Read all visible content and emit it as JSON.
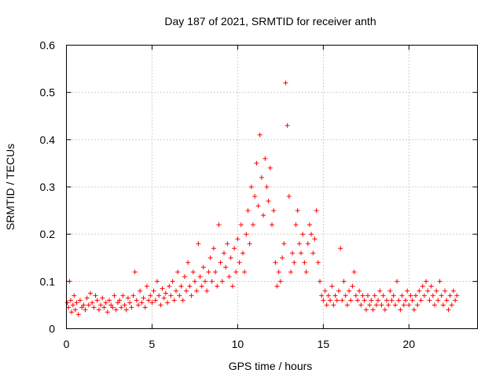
{
  "chart_data": {
    "type": "scatter",
    "title": "Day 187 of 2021, SRMTID for receiver anth",
    "xlabel": "GPS time / hours",
    "ylabel": "SRMTID / TECUs",
    "xlim": [
      0,
      24
    ],
    "ylim": [
      0,
      0.6
    ],
    "xticks": [
      0,
      5,
      10,
      15,
      20
    ],
    "xtick_labels": [
      "0",
      "5",
      "10",
      "15",
      "20"
    ],
    "yticks": [
      0,
      0.1,
      0.2,
      0.3,
      0.4,
      0.5,
      0.6
    ],
    "ytick_labels": [
      "0",
      "0.1",
      "0.2",
      "0.3",
      "0.4",
      "0.5",
      "0.6"
    ],
    "grid": true,
    "marker": "plus",
    "color": "#ff0000",
    "series": [
      {
        "name": "SRMTID",
        "points": [
          [
            0.05,
            0.055
          ],
          [
            0.12,
            0.045
          ],
          [
            0.18,
            0.1
          ],
          [
            0.25,
            0.06
          ],
          [
            0.3,
            0.035
          ],
          [
            0.38,
            0.05
          ],
          [
            0.45,
            0.07
          ],
          [
            0.52,
            0.04
          ],
          [
            0.6,
            0.055
          ],
          [
            0.7,
            0.03
          ],
          [
            0.8,
            0.06
          ],
          [
            0.9,
            0.045
          ],
          [
            1.0,
            0.05
          ],
          [
            1.1,
            0.04
          ],
          [
            1.2,
            0.065
          ],
          [
            1.3,
            0.05
          ],
          [
            1.4,
            0.075
          ],
          [
            1.5,
            0.055
          ],
          [
            1.6,
            0.045
          ],
          [
            1.7,
            0.07
          ],
          [
            1.8,
            0.06
          ],
          [
            1.9,
            0.04
          ],
          [
            2.0,
            0.05
          ],
          [
            2.1,
            0.065
          ],
          [
            2.2,
            0.045
          ],
          [
            2.3,
            0.055
          ],
          [
            2.4,
            0.035
          ],
          [
            2.5,
            0.06
          ],
          [
            2.6,
            0.05
          ],
          [
            2.7,
            0.045
          ],
          [
            2.8,
            0.07
          ],
          [
            2.9,
            0.04
          ],
          [
            3.0,
            0.055
          ],
          [
            3.1,
            0.06
          ],
          [
            3.2,
            0.045
          ],
          [
            3.3,
            0.07
          ],
          [
            3.4,
            0.05
          ],
          [
            3.5,
            0.04
          ],
          [
            3.6,
            0.065
          ],
          [
            3.7,
            0.055
          ],
          [
            3.8,
            0.045
          ],
          [
            3.9,
            0.07
          ],
          [
            4.0,
            0.12
          ],
          [
            4.1,
            0.06
          ],
          [
            4.2,
            0.05
          ],
          [
            4.3,
            0.08
          ],
          [
            4.4,
            0.055
          ],
          [
            4.5,
            0.065
          ],
          [
            4.6,
            0.045
          ],
          [
            4.7,
            0.09
          ],
          [
            4.8,
            0.06
          ],
          [
            4.9,
            0.07
          ],
          [
            5.0,
            0.055
          ],
          [
            5.1,
            0.08
          ],
          [
            5.2,
            0.06
          ],
          [
            5.3,
            0.1
          ],
          [
            5.4,
            0.07
          ],
          [
            5.5,
            0.05
          ],
          [
            5.6,
            0.085
          ],
          [
            5.7,
            0.065
          ],
          [
            5.8,
            0.075
          ],
          [
            5.9,
            0.055
          ],
          [
            6.0,
            0.09
          ],
          [
            6.1,
            0.07
          ],
          [
            6.2,
            0.1
          ],
          [
            6.3,
            0.06
          ],
          [
            6.4,
            0.08
          ],
          [
            6.5,
            0.12
          ],
          [
            6.6,
            0.07
          ],
          [
            6.7,
            0.09
          ],
          [
            6.8,
            0.06
          ],
          [
            6.9,
            0.11
          ],
          [
            7.0,
            0.08
          ],
          [
            7.1,
            0.14
          ],
          [
            7.2,
            0.09
          ],
          [
            7.3,
            0.07
          ],
          [
            7.4,
            0.12
          ],
          [
            7.5,
            0.1
          ],
          [
            7.6,
            0.08
          ],
          [
            7.7,
            0.18
          ],
          [
            7.8,
            0.11
          ],
          [
            7.9,
            0.09
          ],
          [
            8.0,
            0.13
          ],
          [
            8.1,
            0.1
          ],
          [
            8.2,
            0.08
          ],
          [
            8.3,
            0.12
          ],
          [
            8.4,
            0.15
          ],
          [
            8.5,
            0.1
          ],
          [
            8.6,
            0.17
          ],
          [
            8.7,
            0.12
          ],
          [
            8.8,
            0.09
          ],
          [
            8.9,
            0.22
          ],
          [
            9.0,
            0.14
          ],
          [
            9.1,
            0.1
          ],
          [
            9.2,
            0.16
          ],
          [
            9.3,
            0.13
          ],
          [
            9.4,
            0.18
          ],
          [
            9.5,
            0.11
          ],
          [
            9.6,
            0.15
          ],
          [
            9.7,
            0.09
          ],
          [
            9.8,
            0.17
          ],
          [
            9.9,
            0.12
          ],
          [
            10.0,
            0.19
          ],
          [
            10.1,
            0.14
          ],
          [
            10.2,
            0.22
          ],
          [
            10.3,
            0.16
          ],
          [
            10.4,
            0.12
          ],
          [
            10.5,
            0.2
          ],
          [
            10.6,
            0.25
          ],
          [
            10.7,
            0.18
          ],
          [
            10.8,
            0.3
          ],
          [
            10.9,
            0.22
          ],
          [
            11.0,
            0.28
          ],
          [
            11.1,
            0.35
          ],
          [
            11.2,
            0.26
          ],
          [
            11.3,
            0.41
          ],
          [
            11.4,
            0.32
          ],
          [
            11.5,
            0.24
          ],
          [
            11.6,
            0.36
          ],
          [
            11.7,
            0.3
          ],
          [
            11.8,
            0.27
          ],
          [
            11.9,
            0.34
          ],
          [
            12.0,
            0.22
          ],
          [
            12.1,
            0.25
          ],
          [
            12.2,
            0.14
          ],
          [
            12.3,
            0.09
          ],
          [
            12.4,
            0.12
          ],
          [
            12.5,
            0.1
          ],
          [
            12.6,
            0.15
          ],
          [
            12.7,
            0.18
          ],
          [
            12.8,
            0.52
          ],
          [
            12.9,
            0.43
          ],
          [
            13.0,
            0.28
          ],
          [
            13.1,
            0.12
          ],
          [
            13.2,
            0.16
          ],
          [
            13.3,
            0.14
          ],
          [
            13.4,
            0.22
          ],
          [
            13.5,
            0.25
          ],
          [
            13.6,
            0.18
          ],
          [
            13.7,
            0.16
          ],
          [
            13.8,
            0.2
          ],
          [
            13.9,
            0.14
          ],
          [
            14.0,
            0.12
          ],
          [
            14.1,
            0.18
          ],
          [
            14.2,
            0.22
          ],
          [
            14.3,
            0.2
          ],
          [
            14.4,
            0.16
          ],
          [
            14.5,
            0.19
          ],
          [
            14.6,
            0.25
          ],
          [
            14.7,
            0.14
          ],
          [
            14.8,
            0.1
          ],
          [
            14.9,
            0.07
          ],
          [
            15.0,
            0.06
          ],
          [
            15.1,
            0.08
          ],
          [
            15.2,
            0.05
          ],
          [
            15.3,
            0.07
          ],
          [
            15.4,
            0.06
          ],
          [
            15.5,
            0.09
          ],
          [
            15.6,
            0.05
          ],
          [
            15.7,
            0.07
          ],
          [
            15.8,
            0.06
          ],
          [
            15.9,
            0.08
          ],
          [
            16.0,
            0.17
          ],
          [
            16.1,
            0.06
          ],
          [
            16.2,
            0.1
          ],
          [
            16.3,
            0.07
          ],
          [
            16.4,
            0.05
          ],
          [
            16.5,
            0.08
          ],
          [
            16.6,
            0.06
          ],
          [
            16.7,
            0.09
          ],
          [
            16.8,
            0.12
          ],
          [
            16.9,
            0.07
          ],
          [
            17.0,
            0.06
          ],
          [
            17.1,
            0.08
          ],
          [
            17.2,
            0.05
          ],
          [
            17.3,
            0.07
          ],
          [
            17.4,
            0.06
          ],
          [
            17.5,
            0.04
          ],
          [
            17.6,
            0.07
          ],
          [
            17.7,
            0.05
          ],
          [
            17.8,
            0.06
          ],
          [
            17.9,
            0.04
          ],
          [
            18.0,
            0.07
          ],
          [
            18.1,
            0.05
          ],
          [
            18.2,
            0.06
          ],
          [
            18.3,
            0.08
          ],
          [
            18.4,
            0.05
          ],
          [
            18.5,
            0.07
          ],
          [
            18.6,
            0.04
          ],
          [
            18.7,
            0.06
          ],
          [
            18.8,
            0.05
          ],
          [
            18.9,
            0.08
          ],
          [
            19.0,
            0.06
          ],
          [
            19.1,
            0.07
          ],
          [
            19.2,
            0.05
          ],
          [
            19.3,
            0.1
          ],
          [
            19.4,
            0.06
          ],
          [
            19.5,
            0.04
          ],
          [
            19.6,
            0.07
          ],
          [
            19.7,
            0.05
          ],
          [
            19.8,
            0.06
          ],
          [
            19.9,
            0.08
          ],
          [
            20.0,
            0.05
          ],
          [
            20.1,
            0.07
          ],
          [
            20.2,
            0.06
          ],
          [
            20.3,
            0.04
          ],
          [
            20.4,
            0.07
          ],
          [
            20.5,
            0.05
          ],
          [
            20.6,
            0.08
          ],
          [
            20.7,
            0.06
          ],
          [
            20.8,
            0.09
          ],
          [
            20.9,
            0.07
          ],
          [
            21.0,
            0.1
          ],
          [
            21.1,
            0.08
          ],
          [
            21.2,
            0.06
          ],
          [
            21.3,
            0.09
          ],
          [
            21.4,
            0.07
          ],
          [
            21.5,
            0.05
          ],
          [
            21.6,
            0.08
          ],
          [
            21.7,
            0.06
          ],
          [
            21.8,
            0.1
          ],
          [
            21.9,
            0.07
          ],
          [
            22.0,
            0.05
          ],
          [
            22.1,
            0.08
          ],
          [
            22.2,
            0.06
          ],
          [
            22.3,
            0.04
          ],
          [
            22.4,
            0.07
          ],
          [
            22.5,
            0.05
          ],
          [
            22.6,
            0.08
          ],
          [
            22.7,
            0.06
          ],
          [
            22.8,
            0.07
          ]
        ]
      }
    ]
  }
}
